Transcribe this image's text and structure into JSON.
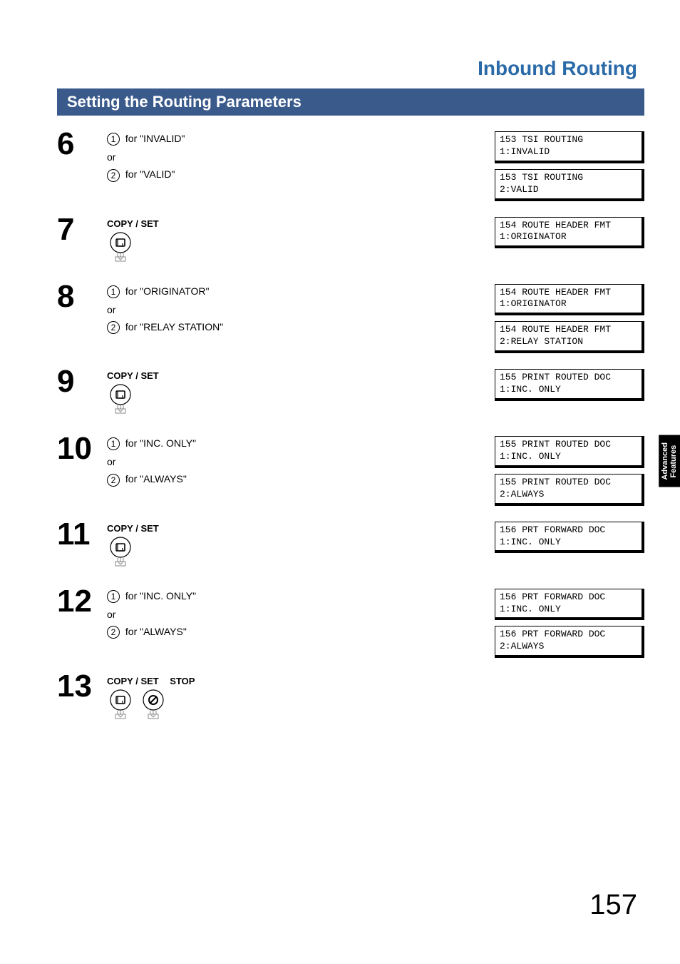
{
  "colors": {
    "section_title": "#2a6aa8",
    "section_bar_bg": "#3a5a8c",
    "section_bar_text": "#ffffff",
    "text": "#000000",
    "tab_bg": "#000000",
    "tab_text": "#ffffff",
    "disp_bg": "#ffffff",
    "disp_border": "#000000"
  },
  "fonts": {
    "section_title_size": 28,
    "section_bar_size": 22,
    "step_num_size": 44,
    "body_size": 14,
    "disp_size": 13,
    "tab_size": 11,
    "page_num_size": 40
  },
  "header": {
    "title": "Inbound Routing",
    "subtitle_bar": "Setting the Routing Parameters"
  },
  "side_tab": {
    "line1": "Advanced",
    "line2": "Features"
  },
  "page_number": "157",
  "labels": {
    "copyset": "COPY / SET",
    "stop": "STOP",
    "or": "or",
    "for": "for"
  },
  "steps": [
    {
      "num": "6",
      "options": [
        {
          "circ": "1",
          "quote": "\"INVALID\""
        },
        {
          "circ": "2",
          "quote": "\"VALID\""
        }
      ],
      "displays": [
        {
          "l1": "153 TSI ROUTING",
          "l2": " 1:INVALID"
        },
        {
          "l1": "153 TSI ROUTING",
          "l2": " 2:VALID"
        }
      ]
    },
    {
      "num": "7",
      "copyset": true,
      "displays": [
        {
          "l1": "154 ROUTE HEADER FMT",
          "l2": " 1:ORIGINATOR"
        }
      ]
    },
    {
      "num": "8",
      "options": [
        {
          "circ": "1",
          "quote": "\"ORIGINATOR\""
        },
        {
          "circ": "2",
          "quote": "\"RELAY STATION\""
        }
      ],
      "displays": [
        {
          "l1": "154 ROUTE HEADER FMT",
          "l2": " 1:ORIGINATOR"
        },
        {
          "l1": "154 ROUTE HEADER FMT",
          "l2": " 2:RELAY STATION"
        }
      ]
    },
    {
      "num": "9",
      "copyset": true,
      "displays": [
        {
          "l1": "155 PRINT ROUTED DOC",
          "l2": " 1:INC. ONLY"
        }
      ]
    },
    {
      "num": "10",
      "options": [
        {
          "circ": "1",
          "quote": "\"INC. ONLY\""
        },
        {
          "circ": "2",
          "quote": "\"ALWAYS\""
        }
      ],
      "displays": [
        {
          "l1": "155 PRINT ROUTED DOC",
          "l2": " 1:INC. ONLY"
        },
        {
          "l1": "155 PRINT ROUTED DOC",
          "l2": " 2:ALWAYS"
        }
      ]
    },
    {
      "num": "11",
      "copyset": true,
      "displays": [
        {
          "l1": "156 PRT FORWARD DOC",
          "l2": " 1:INC. ONLY"
        }
      ]
    },
    {
      "num": "12",
      "options": [
        {
          "circ": "1",
          "quote": "\"INC. ONLY\""
        },
        {
          "circ": "2",
          "quote": "\"ALWAYS\""
        }
      ],
      "displays": [
        {
          "l1": "156 PRT FORWARD DOC",
          "l2": " 1:INC. ONLY"
        },
        {
          "l1": "156 PRT FORWARD DOC",
          "l2": " 2:ALWAYS"
        }
      ]
    },
    {
      "num": "13",
      "copyset_stop": true
    }
  ]
}
